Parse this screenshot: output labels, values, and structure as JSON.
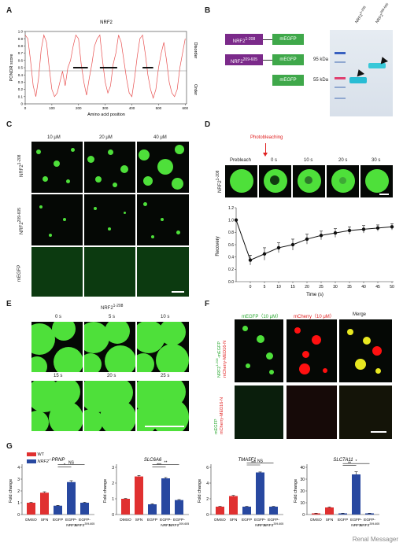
{
  "panel_labels": [
    "A",
    "B",
    "C",
    "D",
    "E",
    "F",
    "G"
  ],
  "panelA": {
    "title": "NRF2",
    "ylabel": "PONDR score",
    "xlabel": "Amino acid position",
    "right_top": "Disorder",
    "right_bottom": "Order",
    "yticks": [
      "0",
      "0.1",
      "0.2",
      "0.3",
      "0.4",
      "0.5",
      "0.6",
      "0.7",
      "0.8",
      "0.9",
      "1.0"
    ],
    "xticks": [
      "0",
      "100",
      "200",
      "300",
      "400",
      "500",
      "600"
    ]
  },
  "panelB": {
    "construct1": "NRF2",
    "construct1_sup": "1-208",
    "construct2": "NRF2",
    "construct2_sup": "209-605",
    "tag": "mEGFP",
    "lane1": "NRF2",
    "lane1_sup": "1-208",
    "lane2": "NRF2",
    "lane2_sup": "209-605",
    "marker1": "95 kDa",
    "marker2": "55 kDa"
  },
  "panelC": {
    "concentrations": [
      "10 μM",
      "20 μM",
      "40 μM"
    ],
    "rows": [
      "NRF2",
      "NRF2",
      "mEGFP"
    ],
    "row_sups": [
      "1-208",
      "209-605",
      ""
    ]
  },
  "panelD": {
    "photobleach": "Photobleaching",
    "times": [
      "Prebleach",
      "0 s",
      "10 s",
      "20 s",
      "30 s"
    ],
    "row_label": "NRF2",
    "row_sup": "1-208",
    "ylabel": "Recovery",
    "xlabel": "Time (s)",
    "yticks": [
      "0.0",
      "0.2",
      "0.4",
      "0.6",
      "0.8",
      "1.0",
      "1.2"
    ],
    "xticks": [
      "0",
      "5",
      "10",
      "15",
      "20",
      "25",
      "30",
      "35",
      "40",
      "45",
      "50"
    ]
  },
  "panelE": {
    "title": "NRF2",
    "title_sup": "1-208",
    "times": [
      "0 s",
      "5 s",
      "10 s",
      "15 s",
      "20 s",
      "25 s"
    ]
  },
  "panelF": {
    "cols": [
      "mEGFP（10 μM）",
      "mCherry（10 μM）",
      "Merge"
    ],
    "row1_a": "NRF2",
    "row1_sup": "1-208",
    "row1_b": "-mEGFP",
    "row1_c": "mCherry-MED16-N",
    "row2_a": "mEGFP",
    "row2_c": "mCherry-MED16-N"
  },
  "panelG": {
    "legend_wt": "WT",
    "legend_ko": "NRF2",
    "legend_ko_sup": "-/-",
    "ylabel": "Fold change",
    "xcats": [
      "DMSO",
      "SFN",
      "EGFP",
      "EGFP-",
      "EGFP-"
    ],
    "xcats2": [
      "",
      "",
      "",
      "NRF2",
      "NRF2"
    ],
    "xsup": "209-605",
    "genes": [
      "PRNP",
      "SLC6A6",
      "TMA5F1",
      "SLC7A11"
    ],
    "stats": [
      "*",
      "NS",
      "***",
      "**",
      "***",
      "NS",
      "**",
      "*"
    ]
  },
  "chart_data": [
    {
      "type": "line",
      "title": "NRF2",
      "xlabel": "Amino acid position",
      "ylabel": "PONDR score",
      "xlim": [
        0,
        605
      ],
      "ylim": [
        0,
        1.0
      ],
      "series": [
        {
          "name": "",
          "x": [
            0,
            10,
            20,
            30,
            40,
            50,
            60,
            70,
            80,
            90,
            100,
            110,
            120,
            130,
            140,
            150,
            160,
            170,
            180,
            190,
            200,
            210,
            220,
            230,
            240,
            250,
            260,
            270,
            280,
            290,
            300,
            310,
            320,
            330,
            340,
            350,
            360,
            370,
            380,
            390,
            400,
            410,
            420,
            430,
            440,
            450,
            460,
            470,
            480,
            490,
            500,
            510,
            520,
            530,
            540,
            550,
            560,
            570,
            580,
            590,
            600
          ],
          "values": [
            0.95,
            0.9,
            0.6,
            0.25,
            0.1,
            0.35,
            0.75,
            0.95,
            0.85,
            0.5,
            0.2,
            0.1,
            0.15,
            0.3,
            0.45,
            0.25,
            0.5,
            0.6,
            0.8,
            0.95,
            0.9,
            0.55,
            0.3,
            0.12,
            0.35,
            0.55,
            0.8,
            0.9,
            0.95,
            0.6,
            0.3,
            0.15,
            0.25,
            0.55,
            0.7,
            0.95,
            0.85,
            0.6,
            0.35,
            0.15,
            0.1,
            0.35,
            0.65,
            0.9,
            0.95,
            0.7,
            0.4,
            0.2,
            0.08,
            0.2,
            0.5,
            0.7,
            0.85,
            0.6,
            0.3,
            0.15,
            0.1,
            0.2,
            0.5,
            0.7,
            0.9
          ]
        }
      ]
    },
    {
      "type": "line",
      "xlabel": "Time (s)",
      "ylabel": "Recovery",
      "xlim": [
        -5,
        50
      ],
      "ylim": [
        0,
        1.2
      ],
      "series": [
        {
          "name": "",
          "x": [
            -5,
            0,
            5,
            10,
            15,
            20,
            25,
            30,
            35,
            40,
            45,
            50
          ],
          "values": [
            1.0,
            0.35,
            0.45,
            0.55,
            0.6,
            0.69,
            0.75,
            0.79,
            0.83,
            0.85,
            0.87,
            0.89
          ],
          "errors": [
            0.0,
            0.08,
            0.1,
            0.08,
            0.09,
            0.08,
            0.07,
            0.07,
            0.06,
            0.06,
            0.05,
            0.05
          ]
        }
      ]
    },
    {
      "type": "bar",
      "title": "PRNP",
      "ylabel": "Fold change",
      "categories": [
        "DMSO",
        "SFN",
        "EGFP",
        "EGFP-NRF2",
        "EGFP-NRF2 209-605"
      ],
      "values": [
        1.0,
        1.85,
        0.75,
        2.75,
        1.0
      ],
      "errors": [
        0.03,
        0.08,
        0.03,
        0.12,
        0.04
      ],
      "colors": [
        "#e03030",
        "#e03030",
        "#2848a0",
        "#2848a0",
        "#2848a0"
      ],
      "ylim": [
        0,
        4
      ]
    },
    {
      "type": "bar",
      "title": "SLC6A6",
      "ylabel": "Fold change",
      "categories": [
        "DMSO",
        "SFN",
        "EGFP",
        "EGFP-NRF2",
        "EGFP-NRF2 209-605"
      ],
      "values": [
        1.0,
        2.42,
        0.65,
        2.3,
        0.92
      ],
      "errors": [
        0.02,
        0.06,
        0.03,
        0.05,
        0.03
      ],
      "colors": [
        "#e03030",
        "#e03030",
        "#2848a0",
        "#2848a0",
        "#2848a0"
      ],
      "ylim": [
        0,
        3
      ]
    },
    {
      "type": "bar",
      "title": "TMA5F1",
      "ylabel": "Fold change",
      "categories": [
        "DMSO",
        "SFN",
        "EGFP",
        "EGFP-NRF2",
        "EGFP-NRF2 209-605"
      ],
      "values": [
        1.0,
        2.35,
        1.0,
        5.35,
        1.0
      ],
      "errors": [
        0.03,
        0.08,
        0.04,
        0.06,
        0.04
      ],
      "colors": [
        "#e03030",
        "#e03030",
        "#2848a0",
        "#2848a0",
        "#2848a0"
      ],
      "ylim": [
        0,
        6
      ]
    },
    {
      "type": "bar",
      "title": "SLC7A11",
      "ylabel": "Fold change",
      "categories": [
        "DMSO",
        "SFN",
        "EGFP",
        "EGFP-NRF2",
        "EGFP-NRF2 209-605"
      ],
      "values": [
        1.0,
        6.0,
        1.0,
        34.0,
        1.0
      ],
      "errors": [
        0.1,
        0.4,
        0.1,
        2.2,
        0.1
      ],
      "colors": [
        "#e03030",
        "#e03030",
        "#2848a0",
        "#2848a0",
        "#2848a0"
      ],
      "ylim": [
        0,
        40
      ]
    }
  ],
  "watermark": "Renal Messager"
}
